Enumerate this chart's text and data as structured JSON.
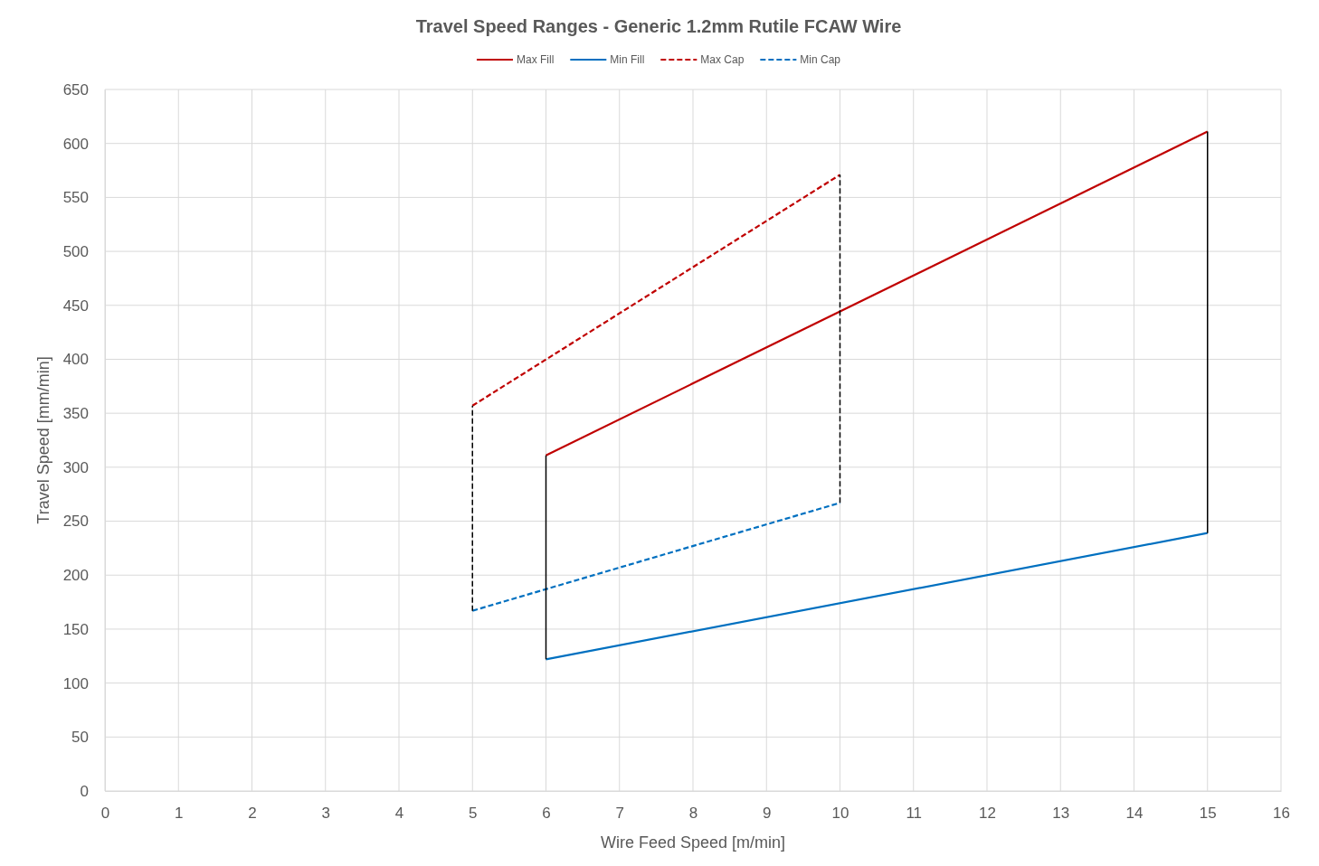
{
  "chart_data": {
    "type": "line",
    "title": "Travel Speed Ranges - Generic 1.2mm Rutile FCAW Wire",
    "xlabel": "Wire Feed Speed [m/min]",
    "ylabel": "Travel Speed [mm/min]",
    "xlim": [
      0,
      16
    ],
    "xticks": [
      0,
      1,
      2,
      3,
      4,
      5,
      6,
      7,
      8,
      9,
      10,
      11,
      12,
      13,
      14,
      15,
      16
    ],
    "ylim": [
      0,
      650
    ],
    "yticks": [
      0,
      50,
      100,
      150,
      200,
      250,
      300,
      350,
      400,
      450,
      500,
      550,
      600,
      650
    ],
    "grid": true,
    "legend": "top",
    "marker": "none",
    "series": [
      {
        "name": "Max Fill",
        "color": "#c00000",
        "line_style": "solid",
        "x": [
          6,
          15
        ],
        "values": [
          311,
          611
        ]
      },
      {
        "name": "Min Fill",
        "color": "#0070c0",
        "line_style": "solid",
        "x": [
          6,
          15
        ],
        "values": [
          122,
          239
        ]
      },
      {
        "name": "Max Cap",
        "color": "#c00000",
        "line_style": "dashed",
        "x": [
          5,
          10
        ],
        "values": [
          357,
          571
        ]
      },
      {
        "name": "Min Cap",
        "color": "#0070c0",
        "line_style": "dashed",
        "x": [
          5,
          10
        ],
        "values": [
          167,
          267
        ]
      },
      {
        "color": "#000000",
        "line_style": "dashed",
        "x": [
          5,
          5
        ],
        "values": [
          167,
          357
        ]
      },
      {
        "color": "#000000",
        "line_style": "solid",
        "x": [
          6,
          6
        ],
        "values": [
          122,
          311
        ]
      },
      {
        "color": "#000000",
        "line_style": "dashed",
        "x": [
          10,
          10
        ],
        "values": [
          267,
          571
        ]
      },
      {
        "color": "#000000",
        "line_style": "solid",
        "x": [
          15,
          15
        ],
        "values": [
          239,
          611
        ]
      }
    ]
  }
}
